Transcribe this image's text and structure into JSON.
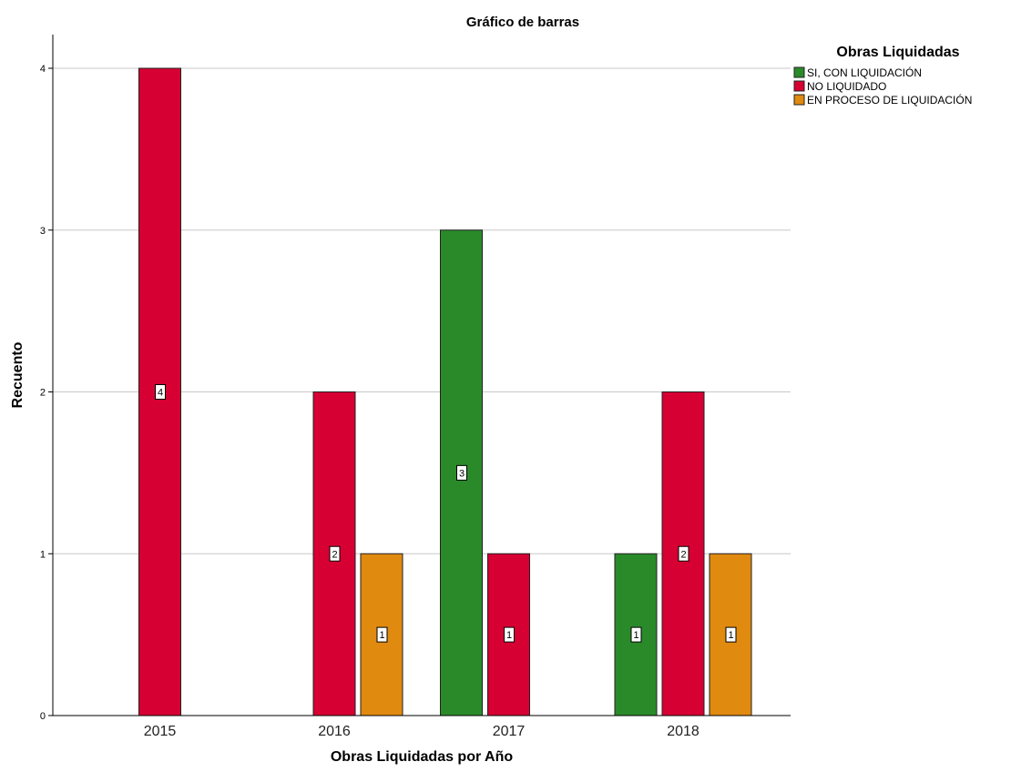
{
  "chart_data": {
    "type": "bar",
    "title": "Gráfico de barras",
    "xlabel": "Obras Liquidadas por Año",
    "ylabel": "Recuento",
    "categories": [
      "2015",
      "2016",
      "2017",
      "2018"
    ],
    "ylim": [
      0,
      4
    ],
    "yticks": [
      "0",
      "1",
      "2",
      "3",
      "4"
    ],
    "grid": true,
    "legend": {
      "title": "Obras Liquidadas",
      "position": "top-right"
    },
    "series": [
      {
        "name": "SI, CON LIQUIDACIÓN",
        "color": "#2a8a2a",
        "values": [
          null,
          null,
          3,
          1
        ]
      },
      {
        "name": "NO LIQUIDADO",
        "color": "#d60033",
        "values": [
          4,
          2,
          1,
          2
        ]
      },
      {
        "name": "EN PROCESO DE LIQUIDACIÓN",
        "color": "#e08a10",
        "values": [
          null,
          1,
          null,
          1
        ]
      }
    ]
  }
}
